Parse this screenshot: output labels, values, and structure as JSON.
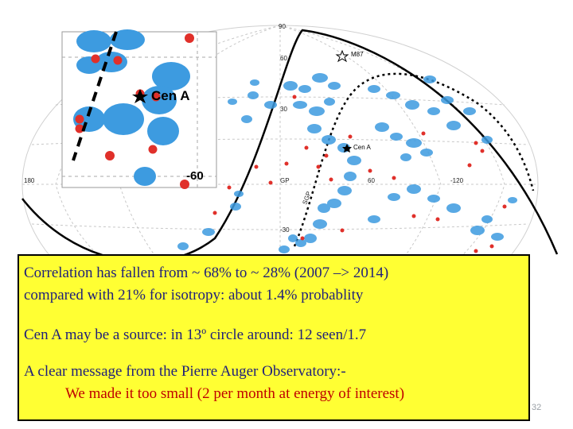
{
  "sky_map": {
    "axis_labels": {
      "lat_90": "90",
      "lat_60": "60",
      "lat_30": "30",
      "lat_m30": "-30",
      "lon_180": "180",
      "lon_60": "60",
      "lon_m120": "-120",
      "gp": "GP",
      "sgp": "SGP"
    },
    "markers": {
      "m87": "M87",
      "cen_a": "Cen A"
    }
  },
  "inset": {
    "source_label": "Cen A",
    "lat_label": "-60"
  },
  "callout": {
    "line1": "Correlation has fallen from ~ 68% to ~ 28% (2007 –> 2014)",
    "line2": "compared with 21% for isotropy: about 1.4% probablity",
    "line3": "Cen A may be a source: in 13º circle around: 12 seen/1.7",
    "line4": "A clear message from the Pierre Auger Observatory:-",
    "line5": "We made it too small (2 per month at energy of interest)"
  },
  "page_number": "32",
  "colors": {
    "blob": "#3d9be0",
    "event": "#e0302a",
    "callout_bg": "#ffff33",
    "callout_text": "#1f1f7a",
    "callout_emphasis": "#c00000"
  }
}
